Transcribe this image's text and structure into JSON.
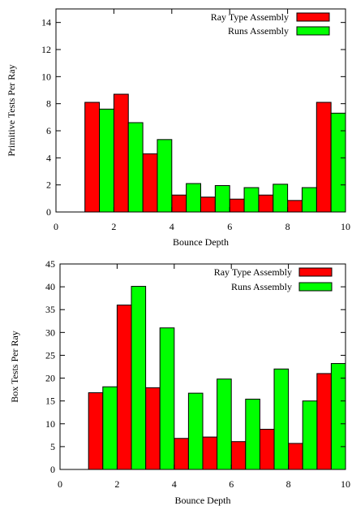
{
  "colors": {
    "ray_type": "#ff0000",
    "runs": "#00ff00",
    "axis": "#000000",
    "background": "#ffffff"
  },
  "chart_data": [
    {
      "type": "bar",
      "title": "",
      "xlabel": "Bounce Depth",
      "ylabel": "Primitive Tests Per Ray",
      "xlim": [
        0,
        10
      ],
      "ylim": [
        0,
        15
      ],
      "xticks": [
        0,
        2,
        4,
        6,
        8,
        10
      ],
      "xtick_labels": [
        "0",
        "2",
        "4",
        "6",
        "8",
        "10"
      ],
      "yticks": [
        0,
        2,
        4,
        6,
        8,
        10,
        12,
        14
      ],
      "ytick_labels": [
        "0",
        "2",
        "4",
        "6",
        "8",
        "10",
        "12",
        "14"
      ],
      "categories": [
        1,
        2,
        3,
        4,
        5,
        6,
        7,
        8,
        9
      ],
      "legend": "top-right",
      "grid": false,
      "series": [
        {
          "name": "Ray Type Assembly",
          "color": "#ff0000",
          "x": [
            1,
            2,
            3,
            4,
            5,
            6,
            7,
            8,
            9
          ],
          "values": [
            8.1,
            8.7,
            4.3,
            1.25,
            1.1,
            0.95,
            1.25,
            0.85,
            8.1
          ]
        },
        {
          "name": "Runs Assembly",
          "color": "#00ff00",
          "x": [
            1,
            2,
            3,
            4,
            5,
            6,
            7,
            8,
            9
          ],
          "values": [
            7.6,
            6.6,
            5.35,
            2.1,
            1.95,
            1.8,
            2.05,
            1.8,
            7.3
          ]
        }
      ]
    },
    {
      "type": "bar",
      "title": "",
      "xlabel": "Bounce Depth",
      "ylabel": "Box Tests Per Ray",
      "xlim": [
        0,
        10
      ],
      "ylim": [
        0,
        45
      ],
      "xticks": [
        0,
        2,
        4,
        6,
        8,
        10
      ],
      "xtick_labels": [
        "0",
        "2",
        "4",
        "6",
        "8",
        "10"
      ],
      "yticks": [
        0,
        5,
        10,
        15,
        20,
        25,
        30,
        35,
        40,
        45
      ],
      "ytick_labels": [
        "0",
        "5",
        "10",
        "15",
        "20",
        "25",
        "30",
        "35",
        "40",
        "45"
      ],
      "categories": [
        1,
        2,
        3,
        4,
        5,
        6,
        7,
        8,
        9
      ],
      "legend": "top-right",
      "grid": false,
      "series": [
        {
          "name": "Ray Type Assembly",
          "color": "#ff0000",
          "x": [
            1,
            2,
            3,
            4,
            5,
            6,
            7,
            8,
            9
          ],
          "values": [
            16.8,
            36.0,
            17.9,
            6.8,
            7.1,
            6.1,
            8.8,
            5.7,
            21.0
          ]
        },
        {
          "name": "Runs Assembly",
          "color": "#00ff00",
          "x": [
            1,
            2,
            3,
            4,
            5,
            6,
            7,
            8,
            9
          ],
          "values": [
            18.1,
            40.1,
            31.0,
            16.7,
            19.8,
            15.4,
            22.0,
            15.0,
            23.2
          ]
        }
      ]
    }
  ]
}
